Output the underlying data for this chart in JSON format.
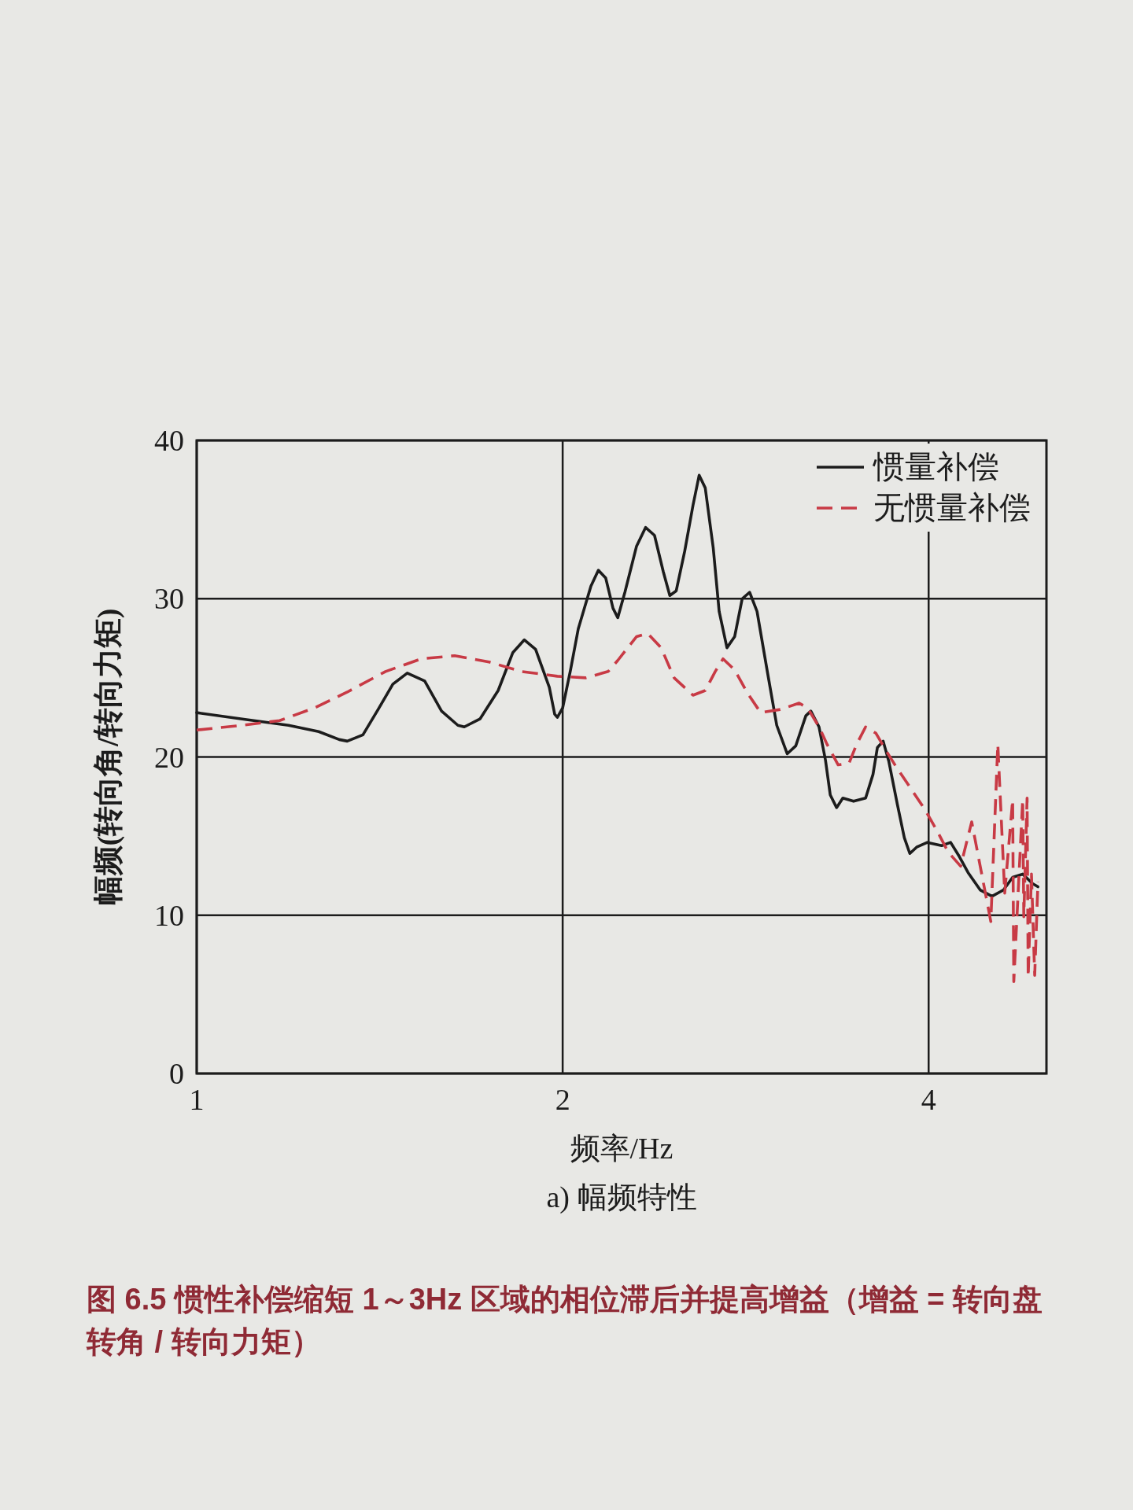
{
  "chart_data": {
    "type": "line",
    "title": "a) 幅频特性",
    "xlabel": "频率/Hz",
    "ylabel": "幅频(转向角/转向力矩)",
    "annotations": [
      "图 6.5 惯性补偿缩短 1～3Hz 区域的相位滞后并提高增益（增益 = 转向盘转角 / 转向力矩）"
    ],
    "log": "x",
    "xlim": [
      1,
      5
    ],
    "xticks": [
      1,
      2,
      4
    ],
    "ylim": [
      0,
      40
    ],
    "yticks": [
      0,
      10,
      20,
      30,
      40
    ],
    "grid": true,
    "legend": "top right",
    "series": [
      {
        "name": "惯量补偿",
        "color": "#1c1c1c",
        "line_style": "solid",
        "x": [
          1.0,
          1.09,
          1.19,
          1.26,
          1.31,
          1.33,
          1.37,
          1.41,
          1.45,
          1.49,
          1.54,
          1.59,
          1.64,
          1.66,
          1.71,
          1.77,
          1.82,
          1.86,
          1.9,
          1.95,
          1.97,
          1.98,
          2.0,
          2.03,
          2.06,
          2.11,
          2.14,
          2.17,
          2.2,
          2.22,
          2.25,
          2.3,
          2.34,
          2.38,
          2.42,
          2.45,
          2.48,
          2.52,
          2.56,
          2.59,
          2.62,
          2.66,
          2.69,
          2.73,
          2.77,
          2.81,
          2.85,
          2.89,
          2.95,
          3.0,
          3.06,
          3.11,
          3.17,
          3.2,
          3.25,
          3.29,
          3.32,
          3.36,
          3.4,
          3.47,
          3.55,
          3.6,
          3.63,
          3.67,
          3.71,
          3.77,
          3.82,
          3.86,
          3.91,
          3.99,
          4.1,
          4.17,
          4.24,
          4.31,
          4.41,
          4.51,
          4.61,
          4.69,
          4.78,
          4.87,
          4.92
        ],
        "values": [
          22.8,
          22.4,
          22.0,
          21.6,
          21.1,
          21.0,
          21.4,
          23.0,
          24.6,
          25.3,
          24.8,
          22.9,
          22.0,
          21.9,
          22.4,
          24.2,
          26.6,
          27.4,
          26.8,
          24.4,
          22.7,
          22.5,
          23.1,
          25.5,
          28.1,
          30.8,
          31.8,
          31.3,
          29.4,
          28.8,
          30.4,
          33.3,
          34.5,
          34.0,
          31.7,
          30.2,
          30.5,
          33.0,
          35.9,
          37.8,
          37.0,
          33.2,
          29.2,
          26.9,
          27.6,
          30.0,
          30.4,
          29.2,
          25.2,
          22.0,
          20.2,
          20.7,
          22.6,
          22.9,
          21.9,
          19.8,
          17.6,
          16.8,
          17.4,
          17.2,
          17.4,
          18.9,
          20.6,
          21.0,
          19.7,
          17.0,
          14.9,
          13.9,
          14.3,
          14.6,
          14.4,
          14.6,
          13.7,
          12.7,
          11.6,
          11.2,
          11.6,
          12.4,
          12.6,
          12.0,
          11.8
        ]
      },
      {
        "name": "无惯量补偿",
        "color": "#c83a45",
        "line_style": "dashed",
        "x": [
          1.0,
          1.09,
          1.17,
          1.25,
          1.33,
          1.43,
          1.53,
          1.63,
          1.74,
          1.85,
          1.98,
          2.09,
          2.18,
          2.22,
          2.3,
          2.35,
          2.41,
          2.47,
          2.56,
          2.62,
          2.67,
          2.71,
          2.77,
          2.84,
          2.91,
          3.02,
          3.13,
          3.18,
          3.25,
          3.3,
          3.37,
          3.44,
          3.49,
          3.55,
          3.62,
          3.69,
          3.76,
          3.86,
          3.97,
          4.06,
          4.15,
          4.25,
          4.34,
          4.5,
          4.56,
          4.62,
          4.69,
          4.7,
          4.78,
          4.79,
          4.82,
          4.83,
          4.86,
          4.89,
          4.92
        ],
        "values": [
          21.7,
          22.0,
          22.3,
          23.1,
          24.1,
          25.4,
          26.2,
          26.4,
          26.0,
          25.4,
          25.1,
          25.0,
          25.4,
          26.1,
          27.6,
          27.8,
          26.9,
          25.0,
          23.9,
          24.2,
          25.4,
          26.2,
          25.5,
          24.0,
          22.8,
          23.0,
          23.4,
          23.1,
          21.9,
          20.8,
          19.5,
          19.6,
          20.8,
          21.9,
          21.5,
          20.4,
          19.4,
          18.1,
          16.7,
          15.4,
          14.0,
          13.1,
          15.9,
          9.6,
          20.8,
          11.4,
          17.3,
          5.8,
          17.3,
          9.9,
          17.4,
          6.1,
          12.6,
          6.2,
          12.1
        ]
      }
    ]
  }
}
